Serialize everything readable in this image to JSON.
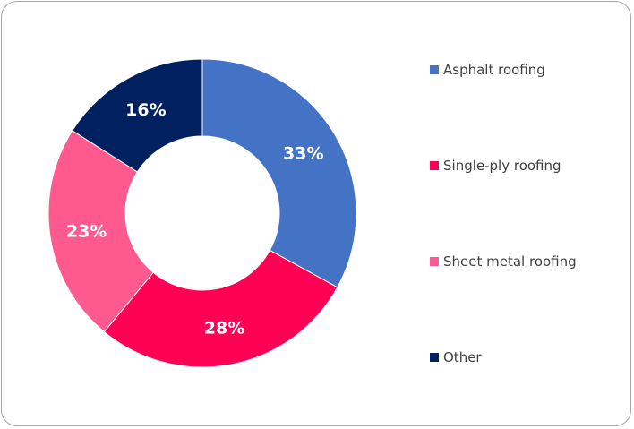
{
  "chart_data": {
    "type": "pie",
    "variant": "donut",
    "title": "",
    "legend_position": "right",
    "categories": [
      "Asphalt roofing",
      "Single-ply roofing",
      "Sheet metal roofing",
      "Other"
    ],
    "values": [
      33,
      28,
      23,
      16
    ],
    "labels": [
      "33%",
      "28%",
      "23%",
      "16%"
    ],
    "colors": [
      "#4472C4",
      "#FF0055",
      "#FF5A8F",
      "#002060"
    ],
    "start_angle_deg": 0,
    "direction": "clockwise"
  }
}
